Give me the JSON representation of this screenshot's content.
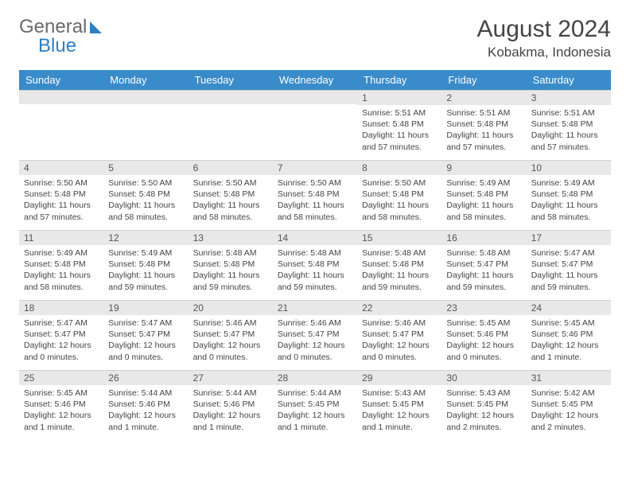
{
  "logo": {
    "part1": "General",
    "part2": "Blue"
  },
  "title": "August 2024",
  "location": "Kobakma, Indonesia",
  "colors": {
    "header_bg": "#3a8bc9",
    "header_text": "#ffffff",
    "daybar_bg": "#e8e8e8",
    "text": "#444444",
    "logo_general": "#6a6a6a",
    "logo_blue": "#2f7fc1"
  },
  "weekdays": [
    "Sunday",
    "Monday",
    "Tuesday",
    "Wednesday",
    "Thursday",
    "Friday",
    "Saturday"
  ],
  "weeks": [
    [
      null,
      null,
      null,
      null,
      {
        "n": "1",
        "sr": "5:51 AM",
        "ss": "5:48 PM",
        "dl": "11 hours and 57 minutes."
      },
      {
        "n": "2",
        "sr": "5:51 AM",
        "ss": "5:48 PM",
        "dl": "11 hours and 57 minutes."
      },
      {
        "n": "3",
        "sr": "5:51 AM",
        "ss": "5:48 PM",
        "dl": "11 hours and 57 minutes."
      }
    ],
    [
      {
        "n": "4",
        "sr": "5:50 AM",
        "ss": "5:48 PM",
        "dl": "11 hours and 57 minutes."
      },
      {
        "n": "5",
        "sr": "5:50 AM",
        "ss": "5:48 PM",
        "dl": "11 hours and 58 minutes."
      },
      {
        "n": "6",
        "sr": "5:50 AM",
        "ss": "5:48 PM",
        "dl": "11 hours and 58 minutes."
      },
      {
        "n": "7",
        "sr": "5:50 AM",
        "ss": "5:48 PM",
        "dl": "11 hours and 58 minutes."
      },
      {
        "n": "8",
        "sr": "5:50 AM",
        "ss": "5:48 PM",
        "dl": "11 hours and 58 minutes."
      },
      {
        "n": "9",
        "sr": "5:49 AM",
        "ss": "5:48 PM",
        "dl": "11 hours and 58 minutes."
      },
      {
        "n": "10",
        "sr": "5:49 AM",
        "ss": "5:48 PM",
        "dl": "11 hours and 58 minutes."
      }
    ],
    [
      {
        "n": "11",
        "sr": "5:49 AM",
        "ss": "5:48 PM",
        "dl": "11 hours and 58 minutes."
      },
      {
        "n": "12",
        "sr": "5:49 AM",
        "ss": "5:48 PM",
        "dl": "11 hours and 59 minutes."
      },
      {
        "n": "13",
        "sr": "5:48 AM",
        "ss": "5:48 PM",
        "dl": "11 hours and 59 minutes."
      },
      {
        "n": "14",
        "sr": "5:48 AM",
        "ss": "5:48 PM",
        "dl": "11 hours and 59 minutes."
      },
      {
        "n": "15",
        "sr": "5:48 AM",
        "ss": "5:48 PM",
        "dl": "11 hours and 59 minutes."
      },
      {
        "n": "16",
        "sr": "5:48 AM",
        "ss": "5:47 PM",
        "dl": "11 hours and 59 minutes."
      },
      {
        "n": "17",
        "sr": "5:47 AM",
        "ss": "5:47 PM",
        "dl": "11 hours and 59 minutes."
      }
    ],
    [
      {
        "n": "18",
        "sr": "5:47 AM",
        "ss": "5:47 PM",
        "dl": "12 hours and 0 minutes."
      },
      {
        "n": "19",
        "sr": "5:47 AM",
        "ss": "5:47 PM",
        "dl": "12 hours and 0 minutes."
      },
      {
        "n": "20",
        "sr": "5:46 AM",
        "ss": "5:47 PM",
        "dl": "12 hours and 0 minutes."
      },
      {
        "n": "21",
        "sr": "5:46 AM",
        "ss": "5:47 PM",
        "dl": "12 hours and 0 minutes."
      },
      {
        "n": "22",
        "sr": "5:46 AM",
        "ss": "5:47 PM",
        "dl": "12 hours and 0 minutes."
      },
      {
        "n": "23",
        "sr": "5:45 AM",
        "ss": "5:46 PM",
        "dl": "12 hours and 0 minutes."
      },
      {
        "n": "24",
        "sr": "5:45 AM",
        "ss": "5:46 PM",
        "dl": "12 hours and 1 minute."
      }
    ],
    [
      {
        "n": "25",
        "sr": "5:45 AM",
        "ss": "5:46 PM",
        "dl": "12 hours and 1 minute."
      },
      {
        "n": "26",
        "sr": "5:44 AM",
        "ss": "5:46 PM",
        "dl": "12 hours and 1 minute."
      },
      {
        "n": "27",
        "sr": "5:44 AM",
        "ss": "5:46 PM",
        "dl": "12 hours and 1 minute."
      },
      {
        "n": "28",
        "sr": "5:44 AM",
        "ss": "5:45 PM",
        "dl": "12 hours and 1 minute."
      },
      {
        "n": "29",
        "sr": "5:43 AM",
        "ss": "5:45 PM",
        "dl": "12 hours and 1 minute."
      },
      {
        "n": "30",
        "sr": "5:43 AM",
        "ss": "5:45 PM",
        "dl": "12 hours and 2 minutes."
      },
      {
        "n": "31",
        "sr": "5:42 AM",
        "ss": "5:45 PM",
        "dl": "12 hours and 2 minutes."
      }
    ]
  ],
  "labels": {
    "sunrise": "Sunrise: ",
    "sunset": "Sunset: ",
    "daylight": "Daylight: "
  }
}
